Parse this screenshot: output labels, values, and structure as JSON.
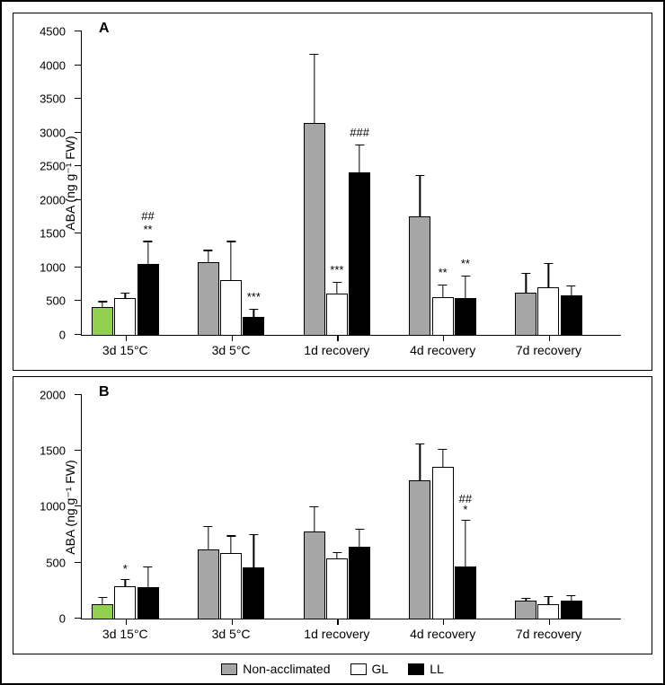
{
  "legend": [
    {
      "label": "Non-acclimated",
      "color": "#a6a6a6"
    },
    {
      "label": "GL",
      "color": "#ffffff"
    },
    {
      "label": "LL",
      "color": "#000000"
    }
  ],
  "green_color": "#92d050",
  "panels": [
    {
      "id": "A",
      "y_label": "ABA (ng g⁻¹ FW)",
      "y_max": 4500,
      "y_step": 500,
      "categories": [
        "3d 15°C",
        "3d 5°C",
        "1d recovery",
        "4d recovery",
        "7d recovery"
      ],
      "series": [
        {
          "bars": [
            {
              "value": 420,
              "err": 90,
              "color": "#92d050",
              "sig": []
            },
            {
              "value": 560,
              "err": 80,
              "color": "#ffffff",
              "sig": []
            },
            {
              "value": 1060,
              "err": 340,
              "color": "#000000",
              "sig": [
                "##",
                "**"
              ]
            }
          ]
        },
        {
          "bars": [
            {
              "value": 1090,
              "err": 180,
              "color": "#a6a6a6",
              "sig": []
            },
            {
              "value": 820,
              "err": 580,
              "color": "#ffffff",
              "sig": []
            },
            {
              "value": 280,
              "err": 120,
              "color": "#000000",
              "sig": [
                "***"
              ]
            }
          ]
        },
        {
          "bars": [
            {
              "value": 3140,
              "err": 1030,
              "color": "#a6a6a6",
              "sig": []
            },
            {
              "value": 620,
              "err": 180,
              "color": "#ffffff",
              "sig": [
                "***"
              ]
            },
            {
              "value": 2410,
              "err": 420,
              "color": "#000000",
              "sig": [
                "###"
              ]
            }
          ]
        },
        {
          "bars": [
            {
              "value": 1760,
              "err": 620,
              "color": "#a6a6a6",
              "sig": []
            },
            {
              "value": 570,
              "err": 190,
              "color": "#ffffff",
              "sig": [
                "**"
              ]
            },
            {
              "value": 560,
              "err": 330,
              "color": "#000000",
              "sig": [
                "**"
              ]
            }
          ]
        },
        {
          "bars": [
            {
              "value": 640,
              "err": 290,
              "color": "#a6a6a6",
              "sig": []
            },
            {
              "value": 710,
              "err": 370,
              "color": "#ffffff",
              "sig": []
            },
            {
              "value": 590,
              "err": 150,
              "color": "#000000",
              "sig": []
            }
          ]
        }
      ]
    },
    {
      "id": "B",
      "y_label": "ABA (ng g⁻¹ FW)",
      "y_max": 2000,
      "y_step": 500,
      "categories": [
        "3d 15°C",
        "3d 5°C",
        "1d recovery",
        "4d recovery",
        "7d recovery"
      ],
      "series": [
        {
          "bars": [
            {
              "value": 140,
              "err": 60,
              "color": "#92d050",
              "sig": []
            },
            {
              "value": 300,
              "err": 60,
              "color": "#ffffff",
              "sig": [
                "*"
              ]
            },
            {
              "value": 285,
              "err": 190,
              "color": "#000000",
              "sig": []
            }
          ]
        },
        {
          "bars": [
            {
              "value": 625,
              "err": 210,
              "color": "#a6a6a6",
              "sig": []
            },
            {
              "value": 590,
              "err": 160,
              "color": "#ffffff",
              "sig": []
            },
            {
              "value": 460,
              "err": 300,
              "color": "#000000",
              "sig": []
            }
          ]
        },
        {
          "bars": [
            {
              "value": 780,
              "err": 230,
              "color": "#a6a6a6",
              "sig": []
            },
            {
              "value": 540,
              "err": 60,
              "color": "#ffffff",
              "sig": []
            },
            {
              "value": 650,
              "err": 160,
              "color": "#000000",
              "sig": []
            }
          ]
        },
        {
          "bars": [
            {
              "value": 1240,
              "err": 330,
              "color": "#a6a6a6",
              "sig": []
            },
            {
              "value": 1360,
              "err": 160,
              "color": "#ffffff",
              "sig": []
            },
            {
              "value": 470,
              "err": 420,
              "color": "#000000",
              "sig": [
                "##",
                "*"
              ]
            }
          ]
        },
        {
          "bars": [
            {
              "value": 165,
              "err": 30,
              "color": "#a6a6a6",
              "sig": []
            },
            {
              "value": 140,
              "err": 70,
              "color": "#ffffff",
              "sig": []
            },
            {
              "value": 170,
              "err": 50,
              "color": "#000000",
              "sig": []
            }
          ]
        }
      ]
    }
  ],
  "layout": {
    "bar_width_pct": 4.0,
    "group_gap_pct": 0.2,
    "group_start_pct": 2,
    "cluster_gap_pct": 7.2
  }
}
